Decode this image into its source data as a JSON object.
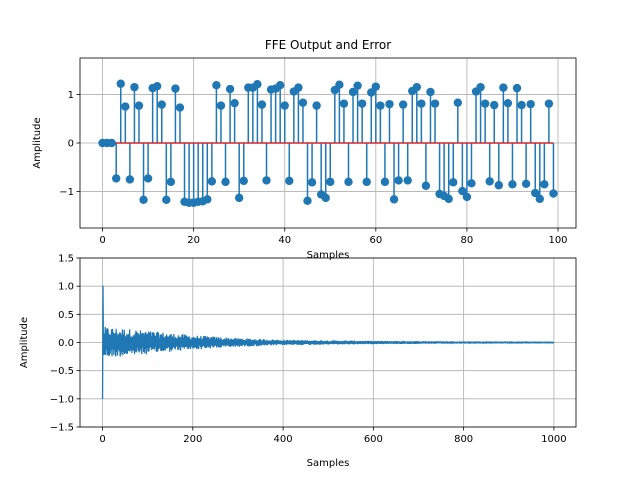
{
  "chart_data": [
    {
      "type": "stem",
      "title": "FFE Output and Error",
      "xlabel": "Samples",
      "ylabel": "Amplitude",
      "xlim": [
        -4.95,
        103.95
      ],
      "ylim": [
        -1.75,
        1.75
      ],
      "xticks": [
        0,
        20,
        40,
        60,
        80,
        100
      ],
      "yticks": [
        -1,
        0,
        1
      ],
      "grid": true,
      "baseline": 0,
      "colors": {
        "stem": "#1f77b4",
        "baseline": "#d62728"
      },
      "x": [
        0,
        1,
        2,
        3,
        4,
        5,
        6,
        7,
        8,
        9,
        10,
        11,
        12,
        13,
        14,
        15,
        16,
        17,
        18,
        19,
        20,
        21,
        22,
        23,
        24,
        25,
        26,
        27,
        28,
        29,
        30,
        31,
        32,
        33,
        34,
        35,
        36,
        37,
        38,
        39,
        40,
        41,
        42,
        43,
        44,
        45,
        46,
        47,
        48,
        49,
        50,
        51,
        52,
        53,
        54,
        55,
        56,
        57,
        58,
        59,
        60,
        61,
        62,
        63,
        64,
        65,
        66,
        67,
        68,
        69,
        70,
        71,
        72,
        73,
        74,
        75,
        76,
        77,
        78,
        79,
        80,
        81,
        82,
        83,
        84,
        85,
        86,
        87,
        88,
        89,
        90,
        91,
        92,
        93,
        94,
        95,
        96,
        97,
        98,
        99
      ],
      "y": [
        0,
        0,
        0,
        -0.73,
        1.22,
        0.75,
        -0.75,
        1.15,
        0.77,
        -1.17,
        -0.73,
        1.13,
        1.17,
        0.79,
        -1.17,
        -0.8,
        1.12,
        0.73,
        -1.21,
        -1.23,
        -1.23,
        -1.21,
        -1.2,
        -1.16,
        -0.79,
        1.19,
        0.77,
        -0.8,
        1.11,
        0.82,
        -1.13,
        -0.78,
        1.14,
        1.14,
        1.21,
        0.79,
        -0.77,
        1.1,
        1.12,
        1.19,
        0.77,
        -0.78,
        1.06,
        1.14,
        0.83,
        -1.19,
        -0.81,
        0.77,
        -1.06,
        -1.13,
        -0.8,
        1.09,
        1.2,
        0.81,
        -0.8,
        1.05,
        1.18,
        0.81,
        -0.8,
        1.04,
        1.16,
        0.77,
        -0.8,
        0.8,
        -1.16,
        -0.77,
        0.79,
        -0.77,
        1.07,
        1.15,
        0.81,
        -0.88,
        1.05,
        0.81,
        -1.05,
        -1.09,
        -1.15,
        -0.81,
        0.83,
        -0.99,
        -1.11,
        -0.83,
        1.06,
        1.15,
        0.81,
        -0.79,
        0.78,
        -0.87,
        1.14,
        0.82,
        -0.85,
        1.13,
        0.78,
        -0.84,
        0.8,
        -1.03,
        -1.15,
        -0.85,
        0.81,
        -1.04
      ]
    },
    {
      "type": "line",
      "xlabel": "Samples",
      "ylabel": "Amplitude",
      "xlim": [
        -49.95,
        1048.95
      ],
      "ylim": [
        -1.5,
        1.5
      ],
      "xticks": [
        0,
        200,
        400,
        600,
        800,
        1000
      ],
      "yticks": [
        -1.5,
        -1.0,
        -0.5,
        0.0,
        0.5,
        1.0,
        1.5
      ],
      "ytick_labels": [
        "−1.5",
        "−1.0",
        "−0.5",
        "0.0",
        "0.5",
        "1.0",
        "1.5"
      ],
      "grid": true,
      "colors": {
        "line": "#1f77b4"
      },
      "series": [
        {
          "x_range": [
            0,
            1000
          ],
          "initial_spike": {
            "x": [
              0,
              1,
              2
            ],
            "y": [
              -1.0,
              1.0,
              -0.2
            ]
          },
          "envelope": [
            {
              "x": 3,
              "a": 0.27
            },
            {
              "x": 50,
              "a": 0.24
            },
            {
              "x": 100,
              "a": 0.2
            },
            {
              "x": 200,
              "a": 0.12
            },
            {
              "x": 300,
              "a": 0.07
            },
            {
              "x": 400,
              "a": 0.04
            },
            {
              "x": 600,
              "a": 0.02
            },
            {
              "x": 800,
              "a": 0.012
            },
            {
              "x": 1000,
              "a": 0.008
            }
          ]
        }
      ]
    }
  ]
}
